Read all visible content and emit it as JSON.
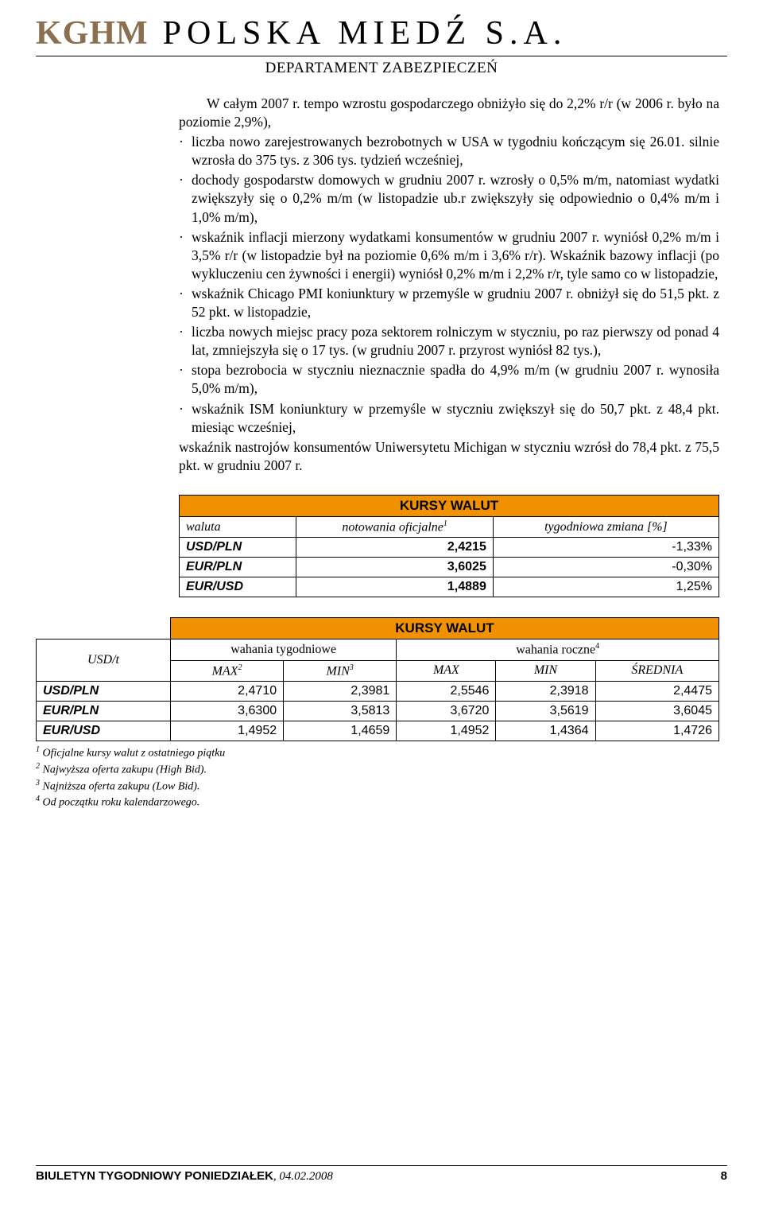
{
  "header": {
    "brand": "KGHM",
    "company": "POLSKA MIEDŹ S.A.",
    "department": "DEPARTAMENT ZABEZPIECZEŃ"
  },
  "body": {
    "p1": "W całym 2007 r. tempo wzrostu gospodarczego obniżyło się do 2,2% r/r (w 2006 r. było na poziomie 2,9%),",
    "b1": "liczba nowo zarejestrowanych bezrobotnych w USA w tygodniu kończącym się 26.01. silnie wzrosła do 375 tys. z 306 tys. tydzień wcześniej,",
    "b2": "dochody gospodarstw domowych w grudniu 2007 r. wzrosły o 0,5% m/m, natomiast wydatki zwiększyły się o 0,2% m/m (w listopadzie ub.r zwiększyły się odpowiednio o 0,4% m/m i 1,0% m/m),",
    "b3": "wskaźnik inflacji mierzony wydatkami konsumentów w grudniu 2007 r. wyniósł 0,2% m/m i 3,5% r/r (w listopadzie był na poziomie 0,6% m/m i 3,6% r/r). Wskaźnik bazowy inflacji (po wykluczeniu cen żywności i energii) wyniósł 0,2% m/m i 2,2% r/r, tyle samo co w listopadzie,",
    "b4": "wskaźnik Chicago PMI koniunktury w przemyśle w grudniu 2007 r. obniżył się do 51,5 pkt. z 52 pkt. w listopadzie,",
    "b5": "liczba nowych miejsc pracy poza sektorem rolniczym w styczniu, po raz pierwszy od ponad 4 lat, zmniejszyła się o 17 tys. (w grudniu 2007 r. przyrost wyniósł 82 tys.),",
    "b6": "stopa bezrobocia w styczniu nieznacznie spadła do 4,9% m/m (w grudniu 2007 r. wynosiła 5,0% m/m),",
    "b7": "wskaźnik ISM koniunktury w przemyśle w styczniu zwiększył się do 50,7 pkt. z 48,4 pkt. miesiąc wcześniej,",
    "p2": "wskaźnik nastrojów konsumentów Uniwersytetu Michigan w styczniu wzrósł do 78,4 pkt. z 75,5 pkt. w grudniu 2007 r."
  },
  "table1": {
    "title": "KURSY WALUT",
    "headers": {
      "c1": "waluta",
      "c2": "notowania oficjalne",
      "c2sup": "1",
      "c3": "tygodniowa zmiana [%]"
    },
    "rows": [
      {
        "pair": "USD/PLN",
        "value": "2,4215",
        "change": "-1,33%"
      },
      {
        "pair": "EUR/PLN",
        "value": "3,6025",
        "change": "-0,30%"
      },
      {
        "pair": "EUR/USD",
        "value": "1,4889",
        "change": "1,25%"
      }
    ]
  },
  "table2": {
    "title": "KURSY WALUT",
    "unit": "USD/t",
    "group1": "wahania tygodniowe",
    "group2_pre": "wahania roczne",
    "group2_sup": "4",
    "sub": {
      "max2": "MAX",
      "max2sup": "2",
      "min3": "MIN",
      "min3sup": "3",
      "max": "MAX",
      "min": "MIN",
      "avg": "ŚREDNIA"
    },
    "rows": [
      {
        "pair": "USD/PLN",
        "v1": "2,4710",
        "v2": "2,3981",
        "v3": "2,5546",
        "v4": "2,3918",
        "v5": "2,4475"
      },
      {
        "pair": "EUR/PLN",
        "v1": "3,6300",
        "v2": "3,5813",
        "v3": "3,6720",
        "v4": "3,5619",
        "v5": "3,6045"
      },
      {
        "pair": "EUR/USD",
        "v1": "1,4952",
        "v2": "1,4659",
        "v3": "1,4952",
        "v4": "1,4364",
        "v5": "1,4726"
      }
    ]
  },
  "footnotes": {
    "f1": "Oficjalne kursy walut z ostatniego piątku",
    "f2": "Najwyższa oferta zakupu (High Bid).",
    "f3": "Najniższa oferta zakupu (Low Bid).",
    "f4": "Od początku roku kalendarzowego."
  },
  "footer": {
    "title_bold": "BIULETYN TYGODNIOWY",
    "title_rest_bold": " PONIEDZIAŁEK",
    "title_date": ", 04.02.2008",
    "page": "8"
  },
  "colors": {
    "brand": "#8b6f4e",
    "table_header_bg": "#f29100",
    "text": "#000000",
    "bg": "#ffffff"
  }
}
